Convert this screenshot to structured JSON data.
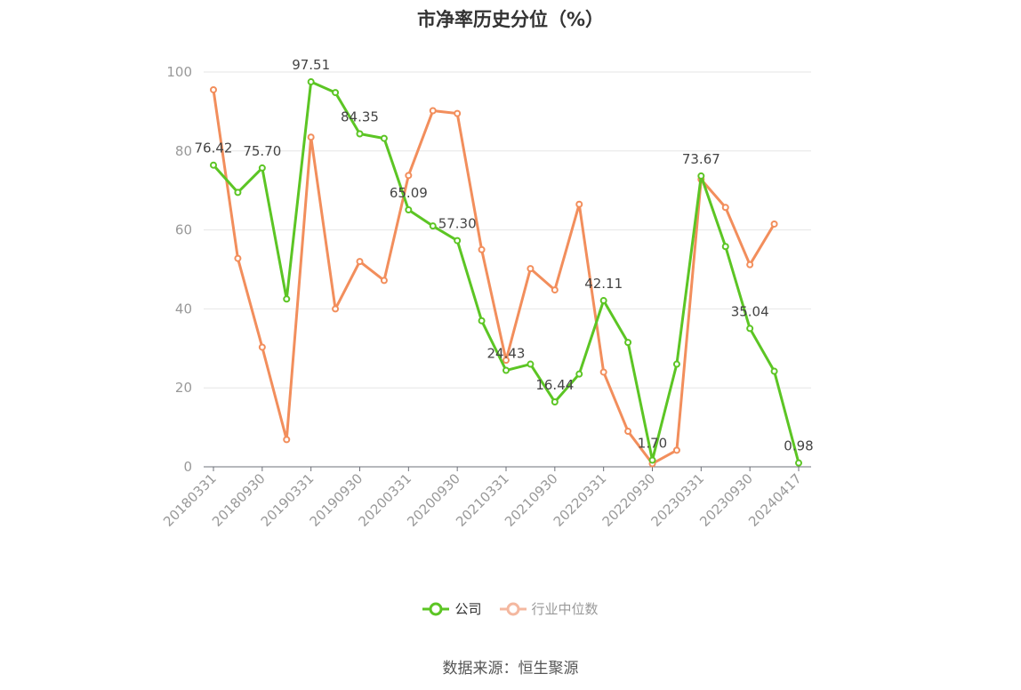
{
  "title": "市净率历史分位（%）",
  "source": "数据来源：恒生聚源",
  "colors": {
    "company": "#5cc524",
    "industry": "#f28e5c",
    "grid": "#e6e6e6",
    "axis": "#6e7079"
  },
  "legend": [
    {
      "name": "公司",
      "color": "#5cc524",
      "active": true
    },
    {
      "name": "行业中位数",
      "color": "#f4b8a0",
      "active": false
    }
  ],
  "chart_data": {
    "type": "line",
    "title": "市净率历史分位（%）",
    "ylim": [
      0,
      100
    ],
    "yticks": [
      0,
      20,
      40,
      60,
      80,
      100
    ],
    "grid": true,
    "legend_position": "bottom",
    "x_tick_labels": [
      "20180331",
      "20180930",
      "20190331",
      "20190930",
      "20200331",
      "20200930",
      "20210331",
      "20210930",
      "20220331",
      "20220930",
      "20230331",
      "20230930",
      "20240417"
    ],
    "x": [
      "20180331",
      "20180630",
      "20180930",
      "20181231",
      "20190331",
      "20190630",
      "20190930",
      "20191231",
      "20200331",
      "20200630",
      "20200930",
      "20201231",
      "20210331",
      "20210630",
      "20210930",
      "20211231",
      "20220331",
      "20220630",
      "20220930",
      "20221231",
      "20230331",
      "20230630",
      "20230930",
      "20231231",
      "20240417"
    ],
    "series": [
      {
        "name": "公司",
        "values": [
          76.42,
          69.5,
          75.7,
          42.5,
          97.51,
          94.8,
          84.35,
          83.2,
          65.09,
          61.0,
          57.3,
          37.0,
          24.43,
          26.0,
          16.44,
          23.5,
          42.11,
          31.5,
          1.7,
          26.0,
          73.67,
          55.8,
          35.04,
          24.2,
          0.98
        ],
        "labels": [
          "76.42",
          "",
          "75.70",
          "",
          "97.51",
          "",
          "84.35",
          "",
          "65.09",
          "",
          "57.30",
          "",
          "24.43",
          "",
          "16.44",
          "",
          "42.11",
          "",
          "1.70",
          "",
          "73.67",
          "",
          "35.04",
          "",
          "0.98"
        ]
      },
      {
        "name": "行业中位数",
        "values": [
          95.5,
          52.8,
          30.3,
          6.9,
          83.5,
          40.0,
          52.0,
          47.2,
          73.8,
          90.2,
          89.5,
          55.0,
          27.0,
          50.2,
          44.8,
          66.5,
          24.0,
          9.0,
          0.8,
          4.2,
          72.8,
          65.7,
          51.2,
          61.5,
          null
        ]
      }
    ]
  }
}
